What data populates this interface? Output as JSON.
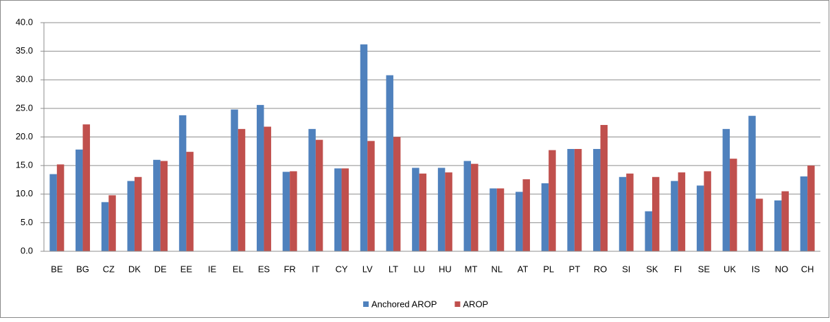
{
  "chart_data": {
    "type": "bar",
    "categories": [
      "BE",
      "BG",
      "CZ",
      "DK",
      "DE",
      "EE",
      "IE",
      "EL",
      "ES",
      "FR",
      "IT",
      "CY",
      "LV",
      "LT",
      "LU",
      "HU",
      "MT",
      "NL",
      "AT",
      "PL",
      "PT",
      "RO",
      "SI",
      "SK",
      "FI",
      "SE",
      "UK",
      "IS",
      "NO",
      "CH"
    ],
    "series": [
      {
        "name": "Anchored AROP",
        "color": "#4f81bd",
        "values": [
          13.5,
          17.8,
          8.6,
          12.3,
          16.0,
          23.8,
          null,
          24.8,
          25.6,
          13.9,
          21.4,
          14.5,
          36.2,
          30.8,
          14.6,
          14.6,
          15.8,
          11.0,
          10.4,
          11.9,
          17.9,
          17.9,
          13.0,
          7.0,
          12.3,
          11.5,
          21.4,
          23.7,
          8.9,
          13.1
        ]
      },
      {
        "name": "AROP",
        "color": "#c0504d",
        "values": [
          15.2,
          22.2,
          9.8,
          13.0,
          15.8,
          17.4,
          null,
          21.4,
          21.8,
          14.0,
          19.5,
          14.5,
          19.3,
          20.0,
          13.6,
          13.8,
          15.3,
          11.0,
          12.6,
          17.7,
          17.9,
          22.1,
          13.6,
          13.0,
          13.8,
          14.0,
          16.2,
          9.2,
          10.5,
          15.0
        ]
      }
    ],
    "ylim": [
      0,
      40
    ],
    "yticks": [
      {
        "value": 0,
        "label": "0.0"
      },
      {
        "value": 5,
        "label": "5.0"
      },
      {
        "value": 10,
        "label": "10.0"
      },
      {
        "value": 15,
        "label": "15.0"
      },
      {
        "value": 20,
        "label": "20.0"
      },
      {
        "value": 25,
        "label": "25.0"
      },
      {
        "value": 30,
        "label": "30.0"
      },
      {
        "value": 35,
        "label": "35.0"
      },
      {
        "value": 40,
        "label": "40.0"
      }
    ],
    "grid": true,
    "legend": "bottom"
  }
}
